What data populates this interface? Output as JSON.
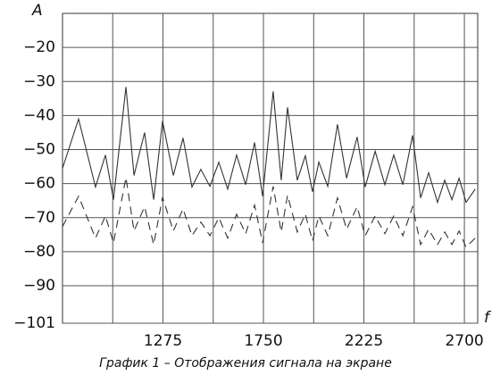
{
  "chart_data": {
    "type": "line",
    "title": "График 1 – Отображения сигнала на экране",
    "x_label": "f",
    "y_label": "A",
    "x": [
      800,
      876,
      956,
      1003,
      1041,
      1100,
      1138,
      1188,
      1231,
      1273,
      1324,
      1370,
      1412,
      1454,
      1497,
      1539,
      1581,
      1623,
      1666,
      1708,
      1746,
      1796,
      1834,
      1864,
      1910,
      1948,
      1982,
      2012,
      2054,
      2100,
      2143,
      2193,
      2231,
      2278,
      2324,
      2366,
      2409,
      2455,
      2493,
      2531,
      2573,
      2607,
      2641,
      2675,
      2708,
      2751
    ],
    "series": [
      {
        "color": "#333333",
        "dash": false,
        "values": [
          -55.5,
          -41,
          -61,
          -51.6,
          -64.7,
          -31.6,
          -57.6,
          -45,
          -64.7,
          -41.6,
          -57.6,
          -46.6,
          -61,
          -55.8,
          -60.8,
          -53.7,
          -61.6,
          -51.6,
          -60.3,
          -47.9,
          -63.7,
          -32.9,
          -59,
          -37.6,
          -59,
          -51.8,
          -62.4,
          -53.7,
          -60.8,
          -42.6,
          -58.4,
          -46.3,
          -61,
          -50.5,
          -60.3,
          -51.6,
          -60.3,
          -45.8,
          -64.2,
          -56.8,
          -65.5,
          -59,
          -64.7,
          -58.4,
          -65.5,
          -61.6
        ]
      },
      {
        "color": "#333333",
        "dash": true,
        "values": [
          -72.6,
          -63.7,
          -76,
          -69.5,
          -77.4,
          -58.2,
          -73.9,
          -66.8,
          -77.9,
          -64,
          -73.9,
          -67.4,
          -75.3,
          -71.3,
          -75.3,
          -70,
          -76,
          -69,
          -74.7,
          -66.3,
          -77.4,
          -60.8,
          -74.2,
          -63.4,
          -74.2,
          -69,
          -76.8,
          -69.5,
          -75.3,
          -64.2,
          -73.4,
          -66.8,
          -75.3,
          -69.5,
          -74.7,
          -69.5,
          -75.3,
          -66.8,
          -77.9,
          -73.4,
          -77.9,
          -74.2,
          -77.9,
          -73.9,
          -78.7,
          -76
        ]
      }
    ],
    "xlim": [
      800,
      2763
    ],
    "ylim": [
      -101,
      -10
    ],
    "xticks": [
      1275,
      1750,
      2225,
      2700
    ],
    "yticks": [
      {
        "value": -101,
        "label": "−101"
      },
      {
        "value": -90,
        "label": "−90"
      },
      {
        "value": -80,
        "label": "−80"
      },
      {
        "value": -70,
        "label": "−70"
      },
      {
        "value": -60,
        "label": "−60"
      },
      {
        "value": -50,
        "label": "−50"
      },
      {
        "value": -40,
        "label": "−40"
      },
      {
        "value": -30,
        "label": "−30"
      },
      {
        "value": -20,
        "label": "−20"
      }
    ],
    "grid": true
  }
}
